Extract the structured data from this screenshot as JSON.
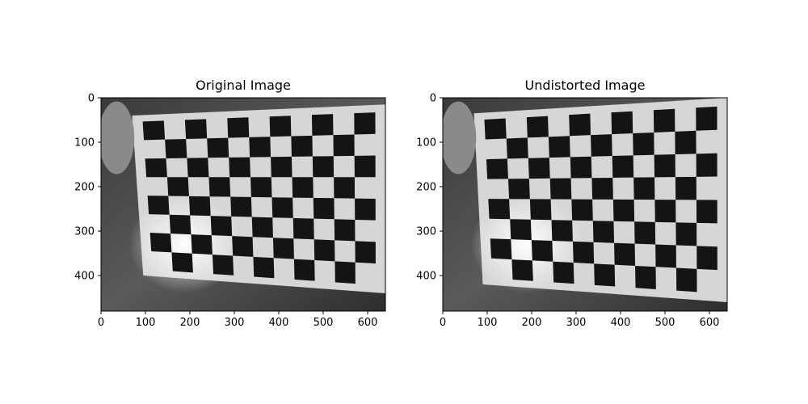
{
  "figure": {
    "background": "#ffffff",
    "axes_color": "#000000"
  },
  "chart_data": [
    {
      "type": "image",
      "title": "Original Image",
      "image_content": "checkerboard-calibration-pattern",
      "colormap": "gray",
      "xlim": [
        0,
        640
      ],
      "ylim": [
        480,
        0
      ],
      "xticks": [
        0,
        100,
        200,
        300,
        400,
        500,
        600
      ],
      "yticks": [
        0,
        100,
        200,
        300,
        400
      ],
      "xtick_labels": [
        "0",
        "100",
        "200",
        "300",
        "400",
        "500",
        "600"
      ],
      "ytick_labels": [
        "0",
        "100",
        "200",
        "300",
        "400"
      ],
      "board_corners": {
        "tl": [
          70,
          40
        ],
        "tr": [
          640,
          15
        ],
        "br": [
          640,
          440
        ],
        "bl": [
          95,
          400
        ]
      },
      "board_cells": [
        8,
        11
      ]
    },
    {
      "type": "image",
      "title": "Undistorted Image",
      "image_content": "checkerboard-calibration-pattern",
      "colormap": "gray",
      "xlim": [
        0,
        640
      ],
      "ylim": [
        480,
        0
      ],
      "xticks": [
        0,
        100,
        200,
        300,
        400,
        500,
        600
      ],
      "yticks": [
        0,
        100,
        200,
        300,
        400
      ],
      "xtick_labels": [
        "0",
        "100",
        "200",
        "300",
        "400",
        "500",
        "600"
      ],
      "ytick_labels": [
        "0",
        "100",
        "200",
        "300",
        "400"
      ],
      "board_corners": {
        "tl": [
          70,
          35
        ],
        "tr": [
          640,
          0
        ],
        "br": [
          640,
          460
        ],
        "bl": [
          90,
          420
        ]
      },
      "board_cells": [
        8,
        11
      ]
    }
  ]
}
